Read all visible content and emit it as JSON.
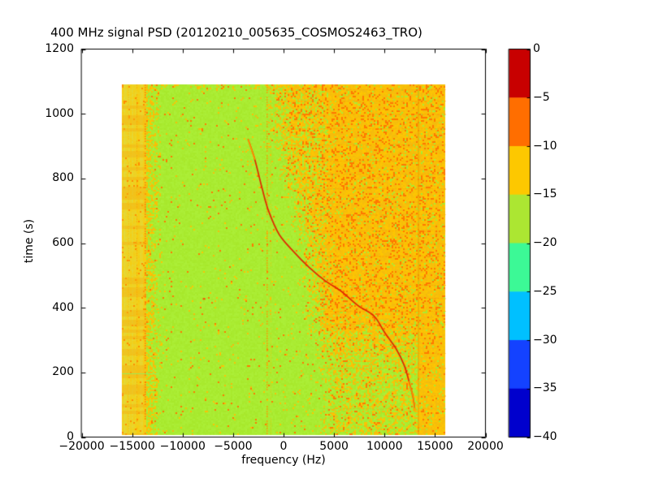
{
  "window": {
    "background": "#ffffff"
  },
  "chart_data": {
    "type": "heatmap",
    "title": "400 MHz signal PSD (20120210_005635_COSMOS2463_TRO)",
    "xlabel": "frequency (Hz)",
    "ylabel": "time (s)",
    "x_range": [
      -20000,
      20000
    ],
    "y_range": [
      0,
      1200
    ],
    "grid": false,
    "x_ticks": {
      "values": [
        -20000,
        -15000,
        -10000,
        -5000,
        0,
        5000,
        10000,
        15000,
        20000
      ],
      "labels": [
        "−20000",
        "−15000",
        "−10000",
        "−5000",
        "0",
        "5000",
        "10000",
        "15000",
        "20000"
      ]
    },
    "y_ticks": {
      "values": [
        0,
        200,
        400,
        600,
        800,
        1000,
        1200
      ],
      "labels": [
        "0",
        "200",
        "400",
        "600",
        "800",
        "1000",
        "1200"
      ]
    },
    "colorbar": {
      "position": "right",
      "tick_values": [
        0,
        -5,
        -10,
        -15,
        -20,
        -25,
        -30,
        -35,
        -40
      ],
      "tick_labels": [
        "0",
        "−5",
        "−10",
        "−15",
        "−20",
        "−25",
        "−30",
        "−35",
        "−40"
      ],
      "bands": [
        {
          "from": 0,
          "to": -5,
          "color": "#c80000"
        },
        {
          "from": -5,
          "to": -10,
          "color": "#ff6e00"
        },
        {
          "from": -10,
          "to": -15,
          "color": "#fdc800"
        },
        {
          "from": -15,
          "to": -20,
          "color": "#ace632"
        },
        {
          "from": -20,
          "to": -25,
          "color": "#3cf996"
        },
        {
          "from": -25,
          "to": -30,
          "color": "#00c0ff"
        },
        {
          "from": -30,
          "to": -35,
          "color": "#1442ff"
        },
        {
          "from": -35,
          "to": -40,
          "color": "#0000cd"
        }
      ]
    },
    "heatmap": {
      "freq_extent": [
        -16000,
        16000
      ],
      "time_extent": [
        8,
        1090
      ],
      "colors": {
        "background_psd": "#aaec32",
        "gold": "#ffc800",
        "gold_dim": "#f3ba10",
        "orange": "#ff7800",
        "band_yellow": "#e2da3c"
      },
      "left_band": {
        "freq": [
          -16000,
          -13700
        ]
      },
      "left_transition": {
        "freq": [
          -13600,
          -12000
        ],
        "max_density": 0.5
      },
      "dense_field": {
        "freq_onset": [
          1200,
          4800
        ],
        "time_onset": [
          190,
          430
        ],
        "max_density": 0.62,
        "freq_shift_max": 3800,
        "shift_time_onset": [
          420,
          1090
        ]
      },
      "moderate_field": {
        "freq_onset": [
          2800,
          5500
        ],
        "density": 0.32
      },
      "sparse_mid": {
        "freq_onset": [
          -600,
          1500
        ],
        "density": 0.05
      },
      "far_right_column": {
        "freq_onset": [
          13000,
          13500
        ],
        "density": 0.93
      },
      "top_edge": {
        "time_above": 1078,
        "extra_density": 0.22
      },
      "vertical_lines": [
        {
          "freq": -15350,
          "rgba": "255,170,0,0.45",
          "width": 1,
          "dotted": true
        },
        {
          "freq": -14550,
          "rgba": "255,150,0,0.55",
          "width": 1,
          "dotted": true
        },
        {
          "freq": -13800,
          "rgba": "255,120,0,0.8",
          "width": 1.5,
          "dotted": true
        },
        {
          "freq": -1650,
          "rgba": "255,150,0,0.8",
          "width": 1.5,
          "dotted": true
        },
        {
          "freq": -1250,
          "rgba": "255,190,0,0.45",
          "width": 1,
          "dotted": true
        },
        {
          "freq": 5150,
          "rgba": "255,170,0,0.4",
          "width": 1,
          "dotted": true
        },
        {
          "freq": 8600,
          "rgba": "255,170,0,0.3",
          "width": 1,
          "dotted": true
        },
        {
          "freq": 13300,
          "rgba": "235,165,0,0.6",
          "width": 2,
          "dotted": false
        },
        {
          "freq": 15400,
          "rgba": "255,180,0,0.4",
          "width": 1,
          "dotted": true
        }
      ],
      "striation_times": [
        90,
        130,
        215,
        260,
        350,
        390,
        430,
        470,
        560,
        600,
        640,
        690,
        770,
        815,
        855,
        905,
        955,
        1000,
        1040,
        1075
      ],
      "green_line": {
        "time": 197,
        "freq": [
          -16000,
          -12400
        ]
      },
      "interference_dot": {
        "freq": -8000,
        "time": 430,
        "color": "#ff4600"
      }
    },
    "doppler_track": {
      "color": "#e02800",
      "tip_color": "#ff9600",
      "points": [
        [
          -3500,
          920
        ],
        [
          -2860,
          860
        ],
        [
          -2130,
          770
        ],
        [
          -1490,
          700
        ],
        [
          -440,
          627
        ],
        [
          925,
          576
        ],
        [
          2530,
          525
        ],
        [
          4140,
          483
        ],
        [
          5750,
          450
        ],
        [
          7360,
          407
        ],
        [
          8970,
          374
        ],
        [
          10020,
          323
        ],
        [
          11150,
          273
        ],
        [
          11950,
          222
        ],
        [
          12430,
          172
        ],
        [
          12840,
          121
        ],
        [
          13000,
          85
        ]
      ]
    }
  }
}
